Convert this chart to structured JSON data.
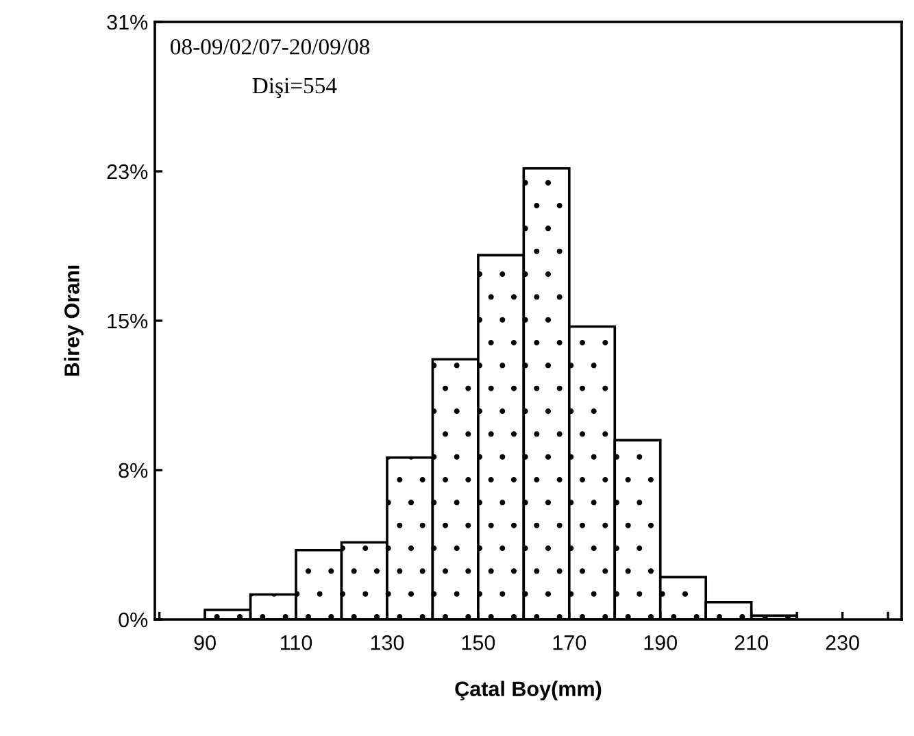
{
  "chart_data": {
    "type": "histogram",
    "bins": [
      90,
      100,
      110,
      120,
      130,
      140,
      150,
      160,
      170,
      180,
      190,
      200,
      210,
      220
    ],
    "values": [
      0.5,
      1.3,
      3.6,
      4.0,
      8.4,
      13.5,
      18.9,
      23.4,
      15.2,
      9.3,
      2.2,
      0.9,
      0.2
    ],
    "color": "#000000",
    "xlabel": "Çatal Boy(mm)",
    "ylabel": "Birey Oranı",
    "xlim": [
      79,
      243
    ],
    "xticks": [
      {
        "value": 80,
        "label": null
      },
      90,
      {
        "value": 100,
        "label": null
      },
      110,
      {
        "value": 120,
        "label": null
      },
      130,
      {
        "value": 140,
        "label": null
      },
      150,
      {
        "value": 160,
        "label": null
      },
      170,
      {
        "value": 180,
        "label": null
      },
      190,
      {
        "value": 200,
        "label": null
      },
      210,
      {
        "value": 220,
        "label": null
      },
      230,
      {
        "value": 240,
        "label": null
      }
    ],
    "ylim": [
      0,
      31
    ],
    "yticks": [
      {
        "value": 0,
        "label": "0%"
      },
      {
        "value": 7.75,
        "label": "8%"
      },
      {
        "value": 15.5,
        "label": "15%"
      },
      {
        "value": 23.25,
        "label": "23%"
      },
      {
        "value": 31,
        "label": "31%"
      }
    ],
    "annotations": [
      "08-09/02/07-20/09/08",
      "Dişi=554"
    ],
    "grid": false,
    "legend": false
  }
}
